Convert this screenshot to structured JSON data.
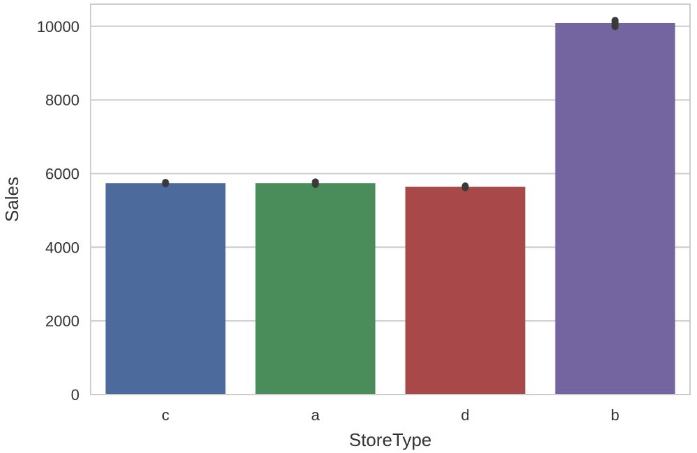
{
  "chart_data": {
    "type": "bar",
    "title": "",
    "xlabel": "StoreType",
    "ylabel": "Sales",
    "categories": [
      "c",
      "a",
      "d",
      "b"
    ],
    "values": [
      5740,
      5740,
      5640,
      10090
    ],
    "error_bars": [
      [
        5720,
        5760
      ],
      [
        5705,
        5775
      ],
      [
        5615,
        5665
      ],
      [
        9990,
        10160
      ]
    ],
    "colors": [
      "#4c6a9b",
      "#4a8c5a",
      "#a84849",
      "#7465a0"
    ],
    "error_color": "#3a3a3a",
    "ylim": [
      0,
      10600
    ],
    "yticks": [
      0,
      2000,
      4000,
      6000,
      8000,
      10000
    ],
    "grid": true,
    "legend": "none"
  }
}
